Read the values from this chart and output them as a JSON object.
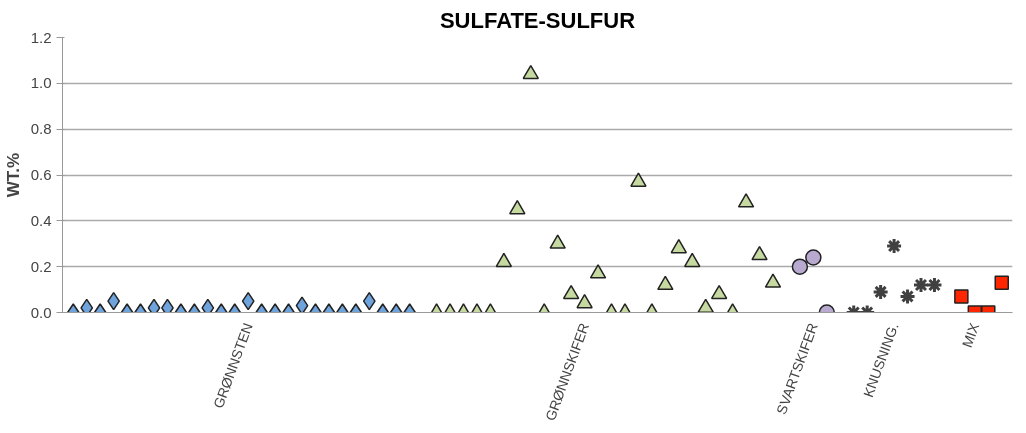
{
  "chart_data": {
    "type": "scatter",
    "title": "SULFATE-SULFUR",
    "ylabel": "WT.%",
    "categories": [
      null,
      null,
      null,
      null,
      null,
      null,
      null,
      null,
      null,
      null,
      null,
      null,
      null,
      "GRØNNSTEN",
      null,
      null,
      null,
      null,
      null,
      null,
      null,
      null,
      null,
      null,
      null,
      null,
      null,
      null,
      null,
      null,
      null,
      null,
      null,
      null,
      null,
      null,
      null,
      null,
      "GRØNNSKIFER",
      null,
      null,
      null,
      null,
      null,
      null,
      null,
      null,
      null,
      null,
      null,
      null,
      null,
      null,
      null,
      null,
      "SVARTSKIFER",
      null,
      null,
      null,
      null,
      null,
      "KNUSNING.",
      null,
      null,
      null,
      null,
      null,
      "MIX",
      null,
      null
    ],
    "series": [
      {
        "color": "#6fa3dc",
        "marker": "diamond",
        "values": [
          0,
          0.02,
          0,
          0.05,
          0,
          0,
          0.02,
          0.02,
          0,
          0,
          0.02,
          0,
          0,
          0.05,
          0,
          0,
          0,
          0.03,
          0,
          0,
          0,
          0,
          0.05,
          0,
          0,
          0,
          null,
          null,
          null,
          null,
          null,
          null,
          null,
          null,
          null,
          null,
          null,
          null,
          null,
          null,
          null,
          null,
          null,
          null,
          null,
          null,
          null,
          null,
          null,
          null,
          null,
          null,
          null,
          null,
          null,
          null,
          null,
          null,
          null,
          null,
          null,
          null,
          null,
          null,
          null,
          null,
          null,
          null,
          null,
          null
        ]
      },
      {
        "color": "#c6d9a0",
        "marker": "triangle",
        "values": [
          null,
          null,
          null,
          null,
          null,
          null,
          null,
          null,
          null,
          null,
          null,
          null,
          null,
          null,
          null,
          null,
          null,
          null,
          null,
          null,
          null,
          null,
          null,
          null,
          null,
          null,
          null,
          0,
          0,
          0,
          0,
          0,
          0.22,
          0.45,
          1.04,
          0,
          0.3,
          0.08,
          0.04,
          0.17,
          0,
          0,
          0.57,
          0,
          0.12,
          0.28,
          0.22,
          0.02,
          0.08,
          0,
          0.48,
          0.25,
          0.13,
          null,
          null,
          null,
          null,
          null,
          null,
          null,
          null,
          null,
          null,
          null,
          null,
          null,
          null,
          null,
          null,
          null
        ]
      },
      {
        "color": "#b8a9cf",
        "marker": "circle",
        "values": [
          null,
          null,
          null,
          null,
          null,
          null,
          null,
          null,
          null,
          null,
          null,
          null,
          null,
          null,
          null,
          null,
          null,
          null,
          null,
          null,
          null,
          null,
          null,
          null,
          null,
          null,
          null,
          null,
          null,
          null,
          null,
          null,
          null,
          null,
          null,
          null,
          null,
          null,
          null,
          null,
          null,
          null,
          null,
          null,
          null,
          null,
          null,
          null,
          null,
          null,
          null,
          null,
          null,
          null,
          0.2,
          0.24,
          0,
          null,
          null,
          null,
          null,
          null,
          null,
          null,
          null,
          null,
          null,
          null,
          null,
          null
        ]
      },
      {
        "color": "#404040",
        "marker": "cross",
        "values": [
          null,
          null,
          null,
          null,
          null,
          null,
          null,
          null,
          null,
          null,
          null,
          null,
          null,
          null,
          null,
          null,
          null,
          null,
          null,
          null,
          null,
          null,
          null,
          null,
          null,
          null,
          null,
          null,
          null,
          null,
          null,
          null,
          null,
          null,
          null,
          null,
          null,
          null,
          null,
          null,
          null,
          null,
          null,
          null,
          null,
          null,
          null,
          null,
          null,
          null,
          null,
          null,
          null,
          null,
          null,
          null,
          null,
          null,
          0,
          0,
          0.09,
          0.29,
          0.07,
          0.12,
          0.12,
          null,
          null,
          null,
          null,
          null
        ]
      },
      {
        "color": "#ff2600",
        "marker": "square",
        "values": [
          null,
          null,
          null,
          null,
          null,
          null,
          null,
          null,
          null,
          null,
          null,
          null,
          null,
          null,
          null,
          null,
          null,
          null,
          null,
          null,
          null,
          null,
          null,
          null,
          null,
          null,
          null,
          null,
          null,
          null,
          null,
          null,
          null,
          null,
          null,
          null,
          null,
          null,
          null,
          null,
          null,
          null,
          null,
          null,
          null,
          null,
          null,
          null,
          null,
          null,
          null,
          null,
          null,
          null,
          null,
          null,
          null,
          null,
          null,
          null,
          null,
          null,
          null,
          null,
          null,
          null,
          0.07,
          0,
          0,
          0.13
        ]
      }
    ],
    "ylim": [
      0,
      1.2
    ],
    "yticks": [
      {
        "value": 0,
        "label": "0.0"
      },
      {
        "value": 0.2,
        "label": "0.2"
      },
      {
        "value": 0.4,
        "label": "0.4"
      },
      {
        "value": 0.6,
        "label": "0.6"
      },
      {
        "value": 0.8,
        "label": "0.8"
      },
      {
        "value": 1.0,
        "label": "1.0"
      },
      {
        "value": 1.2,
        "label": "1.2"
      }
    ],
    "grid": "y"
  }
}
